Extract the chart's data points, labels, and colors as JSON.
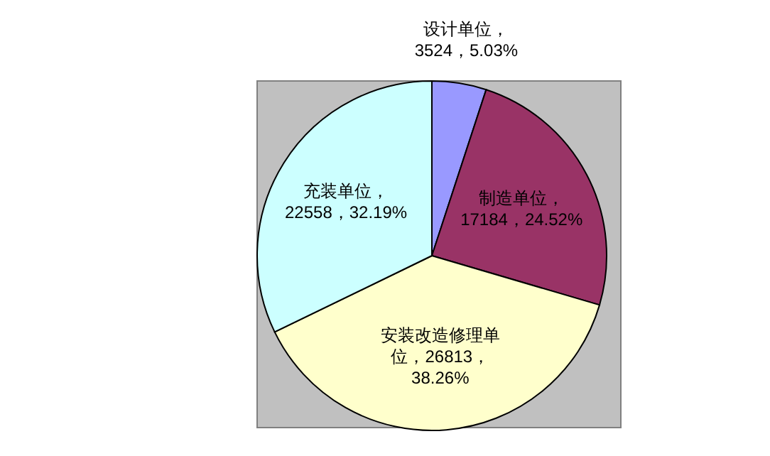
{
  "chart_data": {
    "type": "pie",
    "categories": [
      "设计单位",
      "制造单位",
      "安装改造修理单位",
      "充装单位"
    ],
    "values": [
      3524,
      17184,
      26813,
      22558
    ],
    "colors": [
      "#9999ff",
      "#993366",
      "#ffffcc",
      "#ccffff"
    ],
    "value_labels": [
      "，3524，5.03%",
      "，17184，24.52%",
      "，26813，38.26%",
      "，22558，32.19%"
    ]
  }
}
